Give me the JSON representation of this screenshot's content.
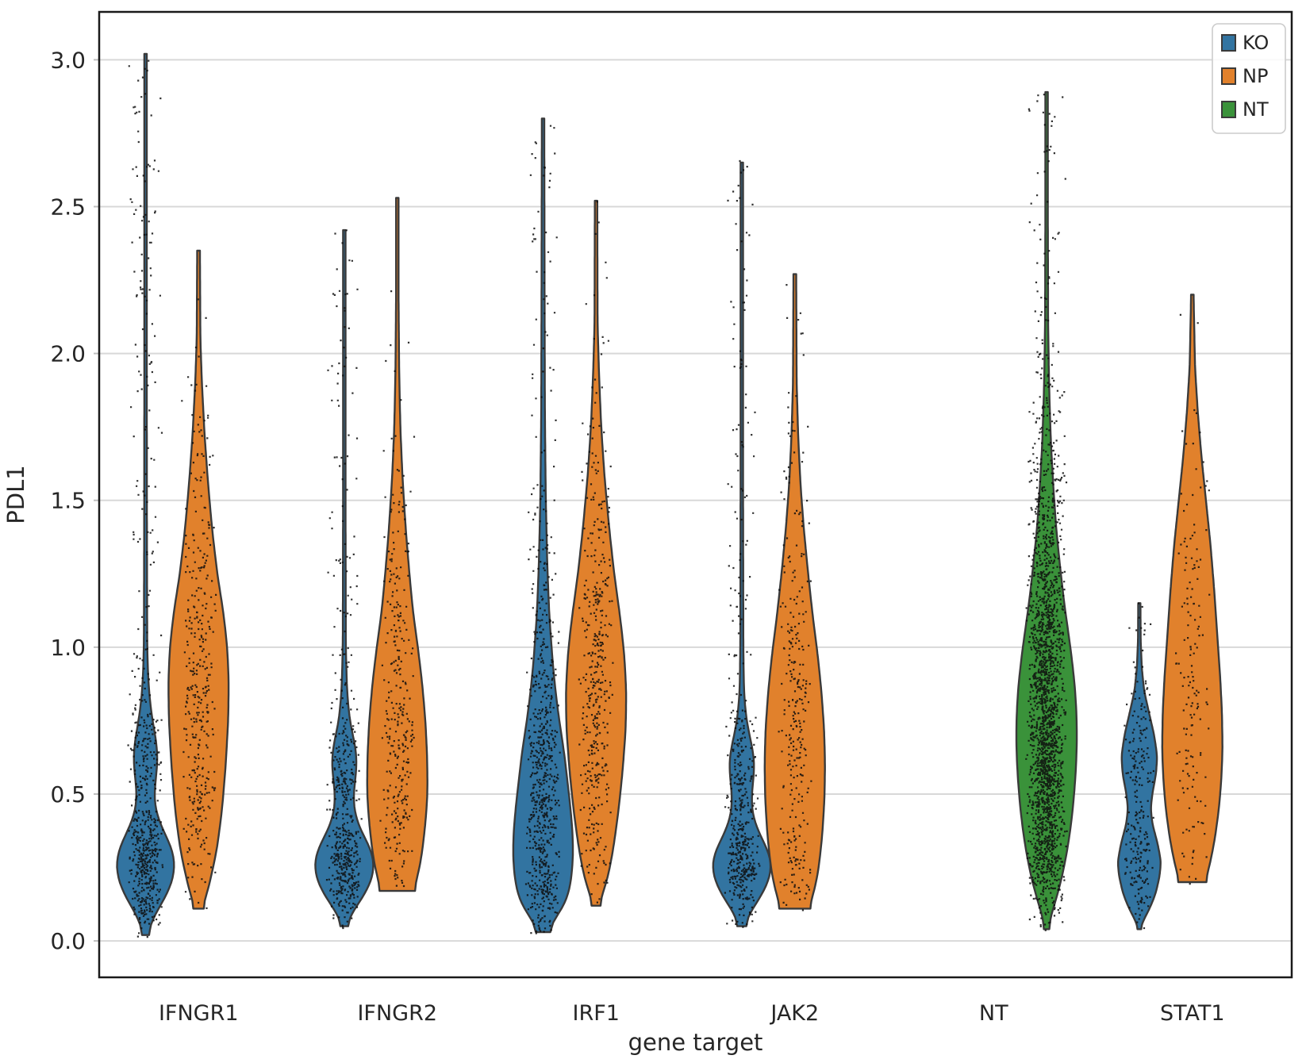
{
  "chart_data": {
    "type": "violin",
    "title": "",
    "xlabel": "gene target",
    "ylabel": "PDL1",
    "categories": [
      "IFNGR1",
      "IFNGR2",
      "IRF1",
      "JAK2",
      "NT",
      "STAT1"
    ],
    "hues": [
      {
        "name": "KO",
        "color": "#3274a1",
        "offset_frac": -0.2667
      },
      {
        "name": "NP",
        "color": "#e1812c",
        "offset_frac": 0.0
      },
      {
        "name": "NT",
        "color": "#3a923a",
        "offset_frac": 0.2667
      }
    ],
    "ylim": [
      -0.124,
      3.163
    ],
    "yticks": [
      0.0,
      0.5,
      1.0,
      1.5,
      2.0,
      2.5,
      3.0
    ],
    "grid": "horizontal",
    "legend_position": "upper right",
    "violins": [
      {
        "category": "IFNGR1",
        "hue": "KO",
        "min": 0.02,
        "max": 3.02,
        "peak": 0.26,
        "n_points": 650,
        "hw_frac": 0.152,
        "jitter_frac": 0.09,
        "profile": [
          [
            0.02,
            0.02
          ],
          [
            0.05,
            0.12
          ],
          [
            0.09,
            0.3
          ],
          [
            0.14,
            0.62
          ],
          [
            0.2,
            0.9
          ],
          [
            0.26,
            1.0
          ],
          [
            0.32,
            0.88
          ],
          [
            0.38,
            0.55
          ],
          [
            0.45,
            0.3
          ],
          [
            0.5,
            0.28
          ],
          [
            0.57,
            0.36
          ],
          [
            0.63,
            0.42
          ],
          [
            0.7,
            0.32
          ],
          [
            0.78,
            0.18
          ],
          [
            0.88,
            0.09
          ],
          [
            1.0,
            0.055
          ],
          [
            1.4,
            0.045
          ],
          [
            2.0,
            0.04
          ],
          [
            3.02,
            0.04
          ]
        ]
      },
      {
        "category": "IFNGR1",
        "hue": "NP",
        "min": 0.11,
        "max": 2.35,
        "peak": 0.88,
        "n_points": 380,
        "hw_frac": 0.152,
        "jitter_frac": 0.09,
        "profile": [
          [
            0.11,
            0.1
          ],
          [
            0.15,
            0.25
          ],
          [
            0.22,
            0.42
          ],
          [
            0.32,
            0.62
          ],
          [
            0.45,
            0.78
          ],
          [
            0.6,
            0.9
          ],
          [
            0.75,
            0.98
          ],
          [
            0.88,
            1.0
          ],
          [
            1.0,
            0.95
          ],
          [
            1.12,
            0.82
          ],
          [
            1.25,
            0.62
          ],
          [
            1.4,
            0.45
          ],
          [
            1.55,
            0.32
          ],
          [
            1.72,
            0.2
          ],
          [
            1.9,
            0.11
          ],
          [
            2.05,
            0.06
          ],
          [
            2.35,
            0.045
          ]
        ]
      },
      {
        "category": "IFNGR2",
        "hue": "KO",
        "min": 0.05,
        "max": 2.42,
        "peak": 0.27,
        "n_points": 550,
        "hw_frac": 0.152,
        "jitter_frac": 0.09,
        "profile": [
          [
            0.05,
            0.03
          ],
          [
            0.08,
            0.16
          ],
          [
            0.12,
            0.42
          ],
          [
            0.17,
            0.75
          ],
          [
            0.22,
            0.95
          ],
          [
            0.27,
            1.0
          ],
          [
            0.32,
            0.85
          ],
          [
            0.38,
            0.52
          ],
          [
            0.44,
            0.33
          ],
          [
            0.5,
            0.3
          ],
          [
            0.56,
            0.38
          ],
          [
            0.62,
            0.42
          ],
          [
            0.68,
            0.33
          ],
          [
            0.75,
            0.18
          ],
          [
            0.85,
            0.09
          ],
          [
            1.0,
            0.05
          ],
          [
            1.5,
            0.04
          ],
          [
            2.42,
            0.04
          ]
        ]
      },
      {
        "category": "IFNGR2",
        "hue": "NP",
        "min": 0.17,
        "max": 2.53,
        "peak": 0.5,
        "n_points": 320,
        "hw_frac": 0.152,
        "jitter_frac": 0.09,
        "profile": [
          [
            0.17,
            0.52
          ],
          [
            0.22,
            0.68
          ],
          [
            0.3,
            0.82
          ],
          [
            0.4,
            0.93
          ],
          [
            0.5,
            1.0
          ],
          [
            0.62,
            0.99
          ],
          [
            0.75,
            0.93
          ],
          [
            0.88,
            0.82
          ],
          [
            1.0,
            0.68
          ],
          [
            1.12,
            0.52
          ],
          [
            1.25,
            0.4
          ],
          [
            1.4,
            0.28
          ],
          [
            1.58,
            0.17
          ],
          [
            1.75,
            0.1
          ],
          [
            1.95,
            0.06
          ],
          [
            2.2,
            0.04
          ],
          [
            2.53,
            0.04
          ]
        ]
      },
      {
        "category": "IRF1",
        "hue": "KO",
        "min": 0.03,
        "max": 2.8,
        "peak": 0.3,
        "n_points": 750,
        "hw_frac": 0.152,
        "jitter_frac": 0.09,
        "profile": [
          [
            0.03,
            0.05
          ],
          [
            0.06,
            0.28
          ],
          [
            0.1,
            0.6
          ],
          [
            0.15,
            0.83
          ],
          [
            0.22,
            0.95
          ],
          [
            0.3,
            1.0
          ],
          [
            0.38,
            0.97
          ],
          [
            0.46,
            0.9
          ],
          [
            0.55,
            0.8
          ],
          [
            0.64,
            0.7
          ],
          [
            0.72,
            0.58
          ],
          [
            0.8,
            0.47
          ],
          [
            0.9,
            0.36
          ],
          [
            1.0,
            0.28
          ],
          [
            1.12,
            0.2
          ],
          [
            1.28,
            0.14
          ],
          [
            1.5,
            0.09
          ],
          [
            1.8,
            0.06
          ],
          [
            2.2,
            0.05
          ],
          [
            2.8,
            0.04
          ]
        ]
      },
      {
        "category": "IRF1",
        "hue": "NP",
        "min": 0.12,
        "max": 2.52,
        "peak": 0.85,
        "n_points": 430,
        "hw_frac": 0.152,
        "jitter_frac": 0.09,
        "profile": [
          [
            0.12,
            0.07
          ],
          [
            0.16,
            0.22
          ],
          [
            0.22,
            0.4
          ],
          [
            0.32,
            0.58
          ],
          [
            0.45,
            0.75
          ],
          [
            0.58,
            0.88
          ],
          [
            0.72,
            0.98
          ],
          [
            0.85,
            1.0
          ],
          [
            0.98,
            0.93
          ],
          [
            1.1,
            0.8
          ],
          [
            1.25,
            0.6
          ],
          [
            1.4,
            0.44
          ],
          [
            1.58,
            0.28
          ],
          [
            1.75,
            0.17
          ],
          [
            1.92,
            0.1
          ],
          [
            2.1,
            0.05
          ],
          [
            2.52,
            0.04
          ]
        ]
      },
      {
        "category": "JAK2",
        "hue": "KO",
        "min": 0.05,
        "max": 2.65,
        "peak": 0.27,
        "n_points": 520,
        "hw_frac": 0.152,
        "jitter_frac": 0.09,
        "profile": [
          [
            0.05,
            0.04
          ],
          [
            0.09,
            0.22
          ],
          [
            0.13,
            0.5
          ],
          [
            0.18,
            0.8
          ],
          [
            0.23,
            0.97
          ],
          [
            0.27,
            1.0
          ],
          [
            0.32,
            0.82
          ],
          [
            0.38,
            0.5
          ],
          [
            0.44,
            0.33
          ],
          [
            0.5,
            0.32
          ],
          [
            0.56,
            0.4
          ],
          [
            0.62,
            0.42
          ],
          [
            0.68,
            0.3
          ],
          [
            0.75,
            0.15
          ],
          [
            0.85,
            0.07
          ],
          [
            1.0,
            0.05
          ],
          [
            1.6,
            0.04
          ],
          [
            2.65,
            0.04
          ]
        ]
      },
      {
        "category": "JAK2",
        "hue": "NP",
        "min": 0.11,
        "max": 2.27,
        "peak": 0.6,
        "n_points": 300,
        "hw_frac": 0.152,
        "jitter_frac": 0.09,
        "profile": [
          [
            0.11,
            0.45
          ],
          [
            0.16,
            0.62
          ],
          [
            0.24,
            0.78
          ],
          [
            0.35,
            0.9
          ],
          [
            0.48,
            0.98
          ],
          [
            0.6,
            1.0
          ],
          [
            0.72,
            0.97
          ],
          [
            0.85,
            0.88
          ],
          [
            0.98,
            0.75
          ],
          [
            1.1,
            0.6
          ],
          [
            1.25,
            0.44
          ],
          [
            1.4,
            0.3
          ],
          [
            1.55,
            0.19
          ],
          [
            1.72,
            0.11
          ],
          [
            1.9,
            0.06
          ],
          [
            2.27,
            0.045
          ]
        ]
      },
      {
        "category": "NT",
        "hue": "NT",
        "min": 0.04,
        "max": 2.89,
        "peak": 0.7,
        "n_points": 2200,
        "hw_frac": 0.152,
        "jitter_frac": 0.104,
        "profile": [
          [
            0.04,
            0.02
          ],
          [
            0.07,
            0.1
          ],
          [
            0.12,
            0.25
          ],
          [
            0.18,
            0.42
          ],
          [
            0.25,
            0.58
          ],
          [
            0.35,
            0.75
          ],
          [
            0.45,
            0.87
          ],
          [
            0.55,
            0.95
          ],
          [
            0.65,
            1.0
          ],
          [
            0.75,
            1.0
          ],
          [
            0.85,
            0.95
          ],
          [
            0.95,
            0.85
          ],
          [
            1.05,
            0.72
          ],
          [
            1.15,
            0.58
          ],
          [
            1.28,
            0.44
          ],
          [
            1.4,
            0.32
          ],
          [
            1.55,
            0.22
          ],
          [
            1.7,
            0.14
          ],
          [
            1.9,
            0.08
          ],
          [
            2.1,
            0.05
          ],
          [
            2.5,
            0.04
          ],
          [
            2.89,
            0.04
          ]
        ]
      },
      {
        "category": "STAT1",
        "hue": "KO",
        "min": 0.04,
        "max": 1.15,
        "peak": 0.27,
        "n_points": 260,
        "hw_frac": 0.136,
        "jitter_frac": 0.08,
        "profile": [
          [
            0.04,
            0.03
          ],
          [
            0.07,
            0.15
          ],
          [
            0.11,
            0.38
          ],
          [
            0.16,
            0.6
          ],
          [
            0.22,
            0.75
          ],
          [
            0.27,
            0.8
          ],
          [
            0.33,
            0.68
          ],
          [
            0.4,
            0.48
          ],
          [
            0.45,
            0.42
          ],
          [
            0.5,
            0.48
          ],
          [
            0.57,
            0.62
          ],
          [
            0.63,
            0.66
          ],
          [
            0.7,
            0.55
          ],
          [
            0.78,
            0.35
          ],
          [
            0.85,
            0.18
          ],
          [
            0.93,
            0.09
          ],
          [
            1.02,
            0.05
          ],
          [
            1.15,
            0.04
          ]
        ]
      },
      {
        "category": "STAT1",
        "hue": "NP",
        "min": 0.2,
        "max": 2.2,
        "peak": 0.65,
        "n_points": 160,
        "hw_frac": 0.152,
        "jitter_frac": 0.09,
        "profile": [
          [
            0.2,
            0.42
          ],
          [
            0.26,
            0.58
          ],
          [
            0.35,
            0.75
          ],
          [
            0.45,
            0.88
          ],
          [
            0.55,
            0.96
          ],
          [
            0.65,
            1.0
          ],
          [
            0.78,
            0.98
          ],
          [
            0.9,
            0.92
          ],
          [
            1.05,
            0.82
          ],
          [
            1.2,
            0.72
          ],
          [
            1.35,
            0.6
          ],
          [
            1.5,
            0.45
          ],
          [
            1.65,
            0.3
          ],
          [
            1.8,
            0.18
          ],
          [
            1.95,
            0.09
          ],
          [
            2.2,
            0.04
          ]
        ]
      }
    ]
  },
  "y_axis": {
    "label": "PDL1",
    "tick_labels": [
      "0.0",
      "0.5",
      "1.0",
      "1.5",
      "2.0",
      "2.5",
      "3.0"
    ]
  },
  "x_axis": {
    "label": "gene target"
  },
  "legend": {
    "items": [
      {
        "label": "KO",
        "color": "#3274a1"
      },
      {
        "label": "NP",
        "color": "#e1812c"
      },
      {
        "label": "NT",
        "color": "#3a923a"
      }
    ]
  },
  "style": {
    "background": "#ffffff",
    "grid_color": "#d8d8d8",
    "spine_color": "#1a1a1a",
    "text_color": "#262626",
    "violin_edge_color": "#3a3a3a",
    "dot_color": "#0e0e0e",
    "legend_border_color": "#cccccc"
  }
}
